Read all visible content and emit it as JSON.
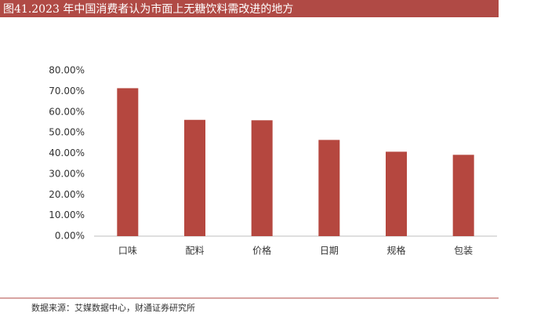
{
  "chart_data": {
    "type": "bar",
    "title": "图41.2023 年中国消费者认为市面上无糖饮料需改进的地方",
    "source": "数据来源：艾媒数据中心，财通证券研究所",
    "categories": [
      "口味",
      "配料",
      "价格",
      "日期",
      "规格",
      "包装"
    ],
    "values": [
      71.5,
      56.2,
      56.0,
      46.5,
      40.8,
      39.3
    ],
    "color": "#b5473f",
    "ylim": [
      0,
      80
    ],
    "yticks": [
      {
        "value": 0,
        "label": "0.00%"
      },
      {
        "value": 10,
        "label": "10.00%"
      },
      {
        "value": 20,
        "label": "20.00%"
      },
      {
        "value": 30,
        "label": "30.00%"
      },
      {
        "value": 40,
        "label": "40.00%"
      },
      {
        "value": 50,
        "label": "50.00%"
      },
      {
        "value": 60,
        "label": "60.00%"
      },
      {
        "value": 70,
        "label": "70.00%"
      },
      {
        "value": 80,
        "label": "80.00%"
      }
    ],
    "grid": false
  }
}
